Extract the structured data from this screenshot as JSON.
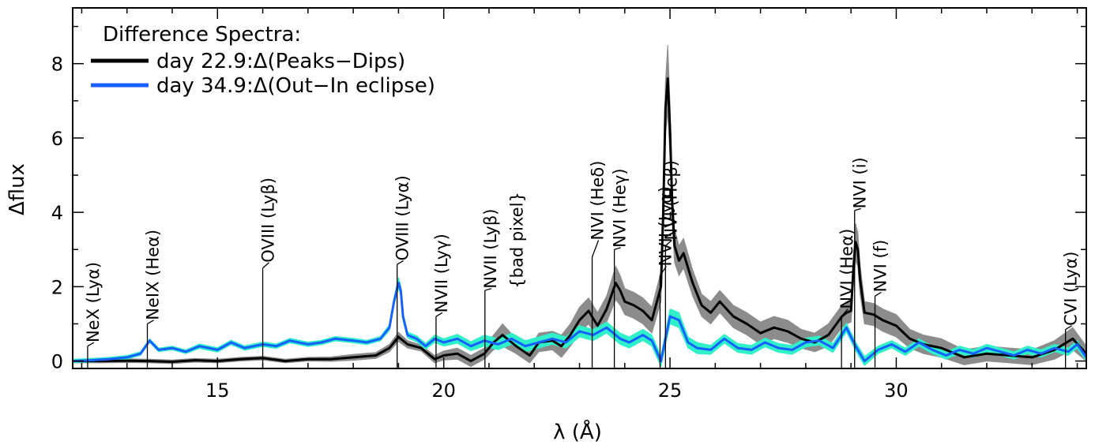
{
  "chart_data": {
    "type": "line",
    "xlabel": "λ (Å)",
    "ylabel": "Δflux",
    "xlim": [
      11.8,
      34.2
    ],
    "ylim": [
      -0.2,
      9.5
    ],
    "x_ticks": [
      15,
      20,
      25,
      30
    ],
    "y_ticks": [
      0,
      2,
      4,
      6,
      8
    ],
    "legend": {
      "title": "Difference Spectra:",
      "placement": "top-left",
      "entries": [
        {
          "label": "day 22.9:Δ(Peaks−Dips)",
          "color": "#000000"
        },
        {
          "label": "day 34.9:Δ(Out−In eclipse)",
          "color": "#1560ff"
        }
      ]
    },
    "series": [
      {
        "name": "day 22.9:Δ(Peaks−Dips)",
        "color": "#000000",
        "band_color": "#8c8c8c",
        "x": [
          11.8,
          12.5,
          13.0,
          13.5,
          14.0,
          14.5,
          15.0,
          15.5,
          16.0,
          16.5,
          17.0,
          17.5,
          18.0,
          18.5,
          18.8,
          19.0,
          19.2,
          19.5,
          19.8,
          20.0,
          20.3,
          20.6,
          20.9,
          21.1,
          21.3,
          21.6,
          21.9,
          22.1,
          22.4,
          22.6,
          22.8,
          23.0,
          23.2,
          23.4,
          23.6,
          23.8,
          23.9,
          24.0,
          24.2,
          24.4,
          24.6,
          24.8,
          24.85,
          24.9,
          24.95,
          25.0,
          25.05,
          25.1,
          25.2,
          25.3,
          25.5,
          25.7,
          25.9,
          26.1,
          26.4,
          26.7,
          27.0,
          27.3,
          27.6,
          27.9,
          28.2,
          28.5,
          28.8,
          28.9,
          29.0,
          29.05,
          29.1,
          29.15,
          29.2,
          29.3,
          29.5,
          29.7,
          30.0,
          30.3,
          30.6,
          31.0,
          31.5,
          32.0,
          32.5,
          33.0,
          33.5,
          33.9,
          34.2
        ],
        "y": [
          0.0,
          0.0,
          0.01,
          0.0,
          -0.02,
          0.02,
          0.0,
          0.05,
          0.08,
          0.0,
          0.05,
          0.05,
          0.1,
          0.15,
          0.35,
          0.65,
          0.45,
          0.35,
          0.05,
          0.15,
          0.2,
          0.0,
          0.2,
          0.5,
          0.7,
          0.4,
          0.15,
          0.5,
          0.55,
          0.4,
          0.7,
          1.1,
          1.35,
          0.95,
          1.4,
          2.1,
          1.9,
          1.6,
          1.5,
          1.35,
          1.1,
          2.0,
          4.0,
          6.8,
          7.6,
          6.2,
          4.2,
          3.1,
          2.7,
          2.9,
          2.1,
          1.5,
          1.3,
          1.6,
          1.2,
          1.0,
          0.75,
          0.9,
          0.8,
          0.6,
          0.5,
          0.7,
          1.2,
          1.3,
          1.35,
          2.4,
          3.2,
          3.0,
          2.2,
          1.3,
          1.25,
          1.1,
          0.95,
          0.6,
          0.45,
          0.35,
          0.1,
          0.2,
          0.15,
          0.1,
          0.3,
          0.6,
          0.2
        ],
        "band_halfwidth": [
          0.05,
          0.05,
          0.05,
          0.05,
          0.05,
          0.05,
          0.05,
          0.05,
          0.05,
          0.05,
          0.05,
          0.06,
          0.08,
          0.08,
          0.1,
          0.12,
          0.1,
          0.08,
          0.1,
          0.12,
          0.15,
          0.15,
          0.15,
          0.2,
          0.3,
          0.2,
          0.2,
          0.25,
          0.25,
          0.3,
          0.3,
          0.35,
          0.35,
          0.35,
          0.35,
          0.45,
          0.4,
          0.35,
          0.35,
          0.35,
          0.35,
          0.4,
          0.5,
          0.7,
          0.9,
          0.7,
          0.5,
          0.45,
          0.4,
          0.4,
          0.35,
          0.3,
          0.3,
          0.3,
          0.3,
          0.3,
          0.3,
          0.3,
          0.3,
          0.25,
          0.25,
          0.3,
          0.3,
          0.3,
          0.3,
          0.4,
          0.5,
          0.45,
          0.4,
          0.3,
          0.3,
          0.3,
          0.3,
          0.25,
          0.25,
          0.25,
          0.2,
          0.2,
          0.2,
          0.2,
          0.25,
          0.3,
          0.2
        ]
      },
      {
        "name": "day 34.9:Δ(Out−In eclipse)",
        "color": "#1560ff",
        "band_color": "#2ff0c8",
        "x": [
          11.8,
          12.2,
          12.6,
          13.0,
          13.3,
          13.5,
          13.7,
          14.0,
          14.3,
          14.6,
          15.0,
          15.3,
          15.6,
          16.0,
          16.3,
          16.6,
          17.0,
          17.3,
          17.6,
          18.0,
          18.3,
          18.6,
          18.8,
          18.9,
          19.0,
          19.05,
          19.1,
          19.2,
          19.4,
          19.6,
          19.8,
          20.0,
          20.3,
          20.6,
          20.9,
          21.2,
          21.5,
          21.8,
          22.1,
          22.4,
          22.7,
          23.0,
          23.3,
          23.6,
          23.9,
          24.1,
          24.4,
          24.6,
          24.8,
          25.0,
          25.2,
          25.4,
          25.6,
          25.9,
          26.2,
          26.5,
          26.8,
          27.1,
          27.4,
          27.7,
          28.0,
          28.3,
          28.6,
          28.9,
          29.1,
          29.3,
          29.6,
          29.9,
          30.2,
          30.5,
          30.8,
          31.1,
          31.4,
          31.7,
          32.0,
          32.3,
          32.6,
          32.9,
          33.2,
          33.5,
          33.8,
          34.0,
          34.2
        ],
        "y": [
          0.0,
          0.02,
          0.05,
          0.1,
          0.2,
          0.55,
          0.3,
          0.35,
          0.25,
          0.4,
          0.3,
          0.5,
          0.35,
          0.45,
          0.4,
          0.55,
          0.45,
          0.5,
          0.6,
          0.55,
          0.5,
          0.6,
          0.9,
          1.6,
          2.1,
          1.9,
          1.2,
          0.7,
          0.6,
          0.4,
          0.6,
          0.5,
          0.6,
          0.4,
          0.55,
          0.45,
          0.6,
          0.4,
          0.5,
          0.6,
          0.5,
          0.8,
          0.7,
          0.9,
          0.6,
          0.5,
          0.7,
          0.55,
          0.0,
          1.2,
          1.1,
          0.5,
          0.35,
          0.3,
          0.6,
          0.35,
          0.3,
          0.5,
          0.35,
          0.3,
          0.5,
          0.55,
          0.35,
          0.9,
          0.4,
          0.0,
          0.3,
          0.45,
          0.25,
          0.5,
          0.3,
          0.15,
          0.3,
          0.2,
          0.35,
          0.25,
          0.15,
          0.3,
          0.2,
          0.35,
          0.25,
          0.45,
          0.1
        ],
        "band_halfwidth": [
          0.05,
          0.05,
          0.05,
          0.05,
          0.05,
          0.05,
          0.05,
          0.05,
          0.05,
          0.06,
          0.06,
          0.06,
          0.06,
          0.06,
          0.06,
          0.06,
          0.06,
          0.06,
          0.06,
          0.06,
          0.06,
          0.06,
          0.08,
          0.1,
          0.15,
          0.12,
          0.1,
          0.08,
          0.08,
          0.08,
          0.1,
          0.1,
          0.12,
          0.12,
          0.15,
          0.15,
          0.15,
          0.15,
          0.15,
          0.15,
          0.15,
          0.15,
          0.15,
          0.15,
          0.15,
          0.15,
          0.15,
          0.15,
          0.15,
          0.2,
          0.2,
          0.15,
          0.15,
          0.12,
          0.12,
          0.12,
          0.12,
          0.12,
          0.12,
          0.12,
          0.12,
          0.12,
          0.12,
          0.12,
          0.12,
          0.12,
          0.1,
          0.1,
          0.1,
          0.1,
          0.1,
          0.1,
          0.1,
          0.1,
          0.1,
          0.1,
          0.1,
          0.1,
          0.1,
          0.1,
          0.1,
          0.1,
          0.1
        ]
      }
    ],
    "line_labels": [
      {
        "text": "NeX (Lyα)",
        "wavelength": 12.13,
        "marker_top": 0.4,
        "label_base": 0.5
      },
      {
        "text": "NeIX (Heα)",
        "wavelength": 13.45,
        "marker_top": 1.0,
        "label_base": 1.1
      },
      {
        "text": "OVIII (Lyβ)",
        "wavelength": 16.0,
        "marker_top": 2.5,
        "label_base": 2.65
      },
      {
        "text": "OVIII (Lyα)",
        "wavelength": 18.97,
        "marker_top": 2.6,
        "label_base": 2.7
      },
      {
        "text": "NVII (Lyγ)",
        "wavelength": 19.83,
        "marker_top": 1.2,
        "label_base": 1.3
      },
      {
        "text": "NVII (Lyβ)",
        "wavelength": 20.91,
        "marker_top": 1.9,
        "label_base": 1.95
      },
      {
        "text": "{bad pixel}",
        "wavelength": 21.5,
        "marker_top": null,
        "label_base": 1.95
      },
      {
        "text": "NVI (Heδ)",
        "wavelength": 23.28,
        "marker_top": 2.8,
        "label_base": 3.25
      },
      {
        "text": "NVI (Heγ)",
        "wavelength": 23.77,
        "marker_top": 3.0,
        "label_base": 3.05
      },
      {
        "text": "NVII (Lyα)",
        "wavelength": 24.78,
        "marker_top": 2.3,
        "label_base": 2.55
      },
      {
        "text": "NVI (Heβ)",
        "wavelength": 24.9,
        "marker_top": 3.1,
        "label_base": 3.25
      },
      {
        "text": "NVI (Heα)",
        "wavelength": 28.79,
        "marker_top": 1.2,
        "label_base": 1.4
      },
      {
        "text": "NVI (i)",
        "wavelength": 29.08,
        "marker_top": 4.05,
        "label_base": 4.1
      },
      {
        "text": "NVI (f)",
        "wavelength": 29.53,
        "marker_top": 1.75,
        "label_base": 1.85
      },
      {
        "text": "CVI (Lyα)",
        "wavelength": 33.74,
        "marker_top": 0.85,
        "label_base": 0.95
      }
    ]
  }
}
